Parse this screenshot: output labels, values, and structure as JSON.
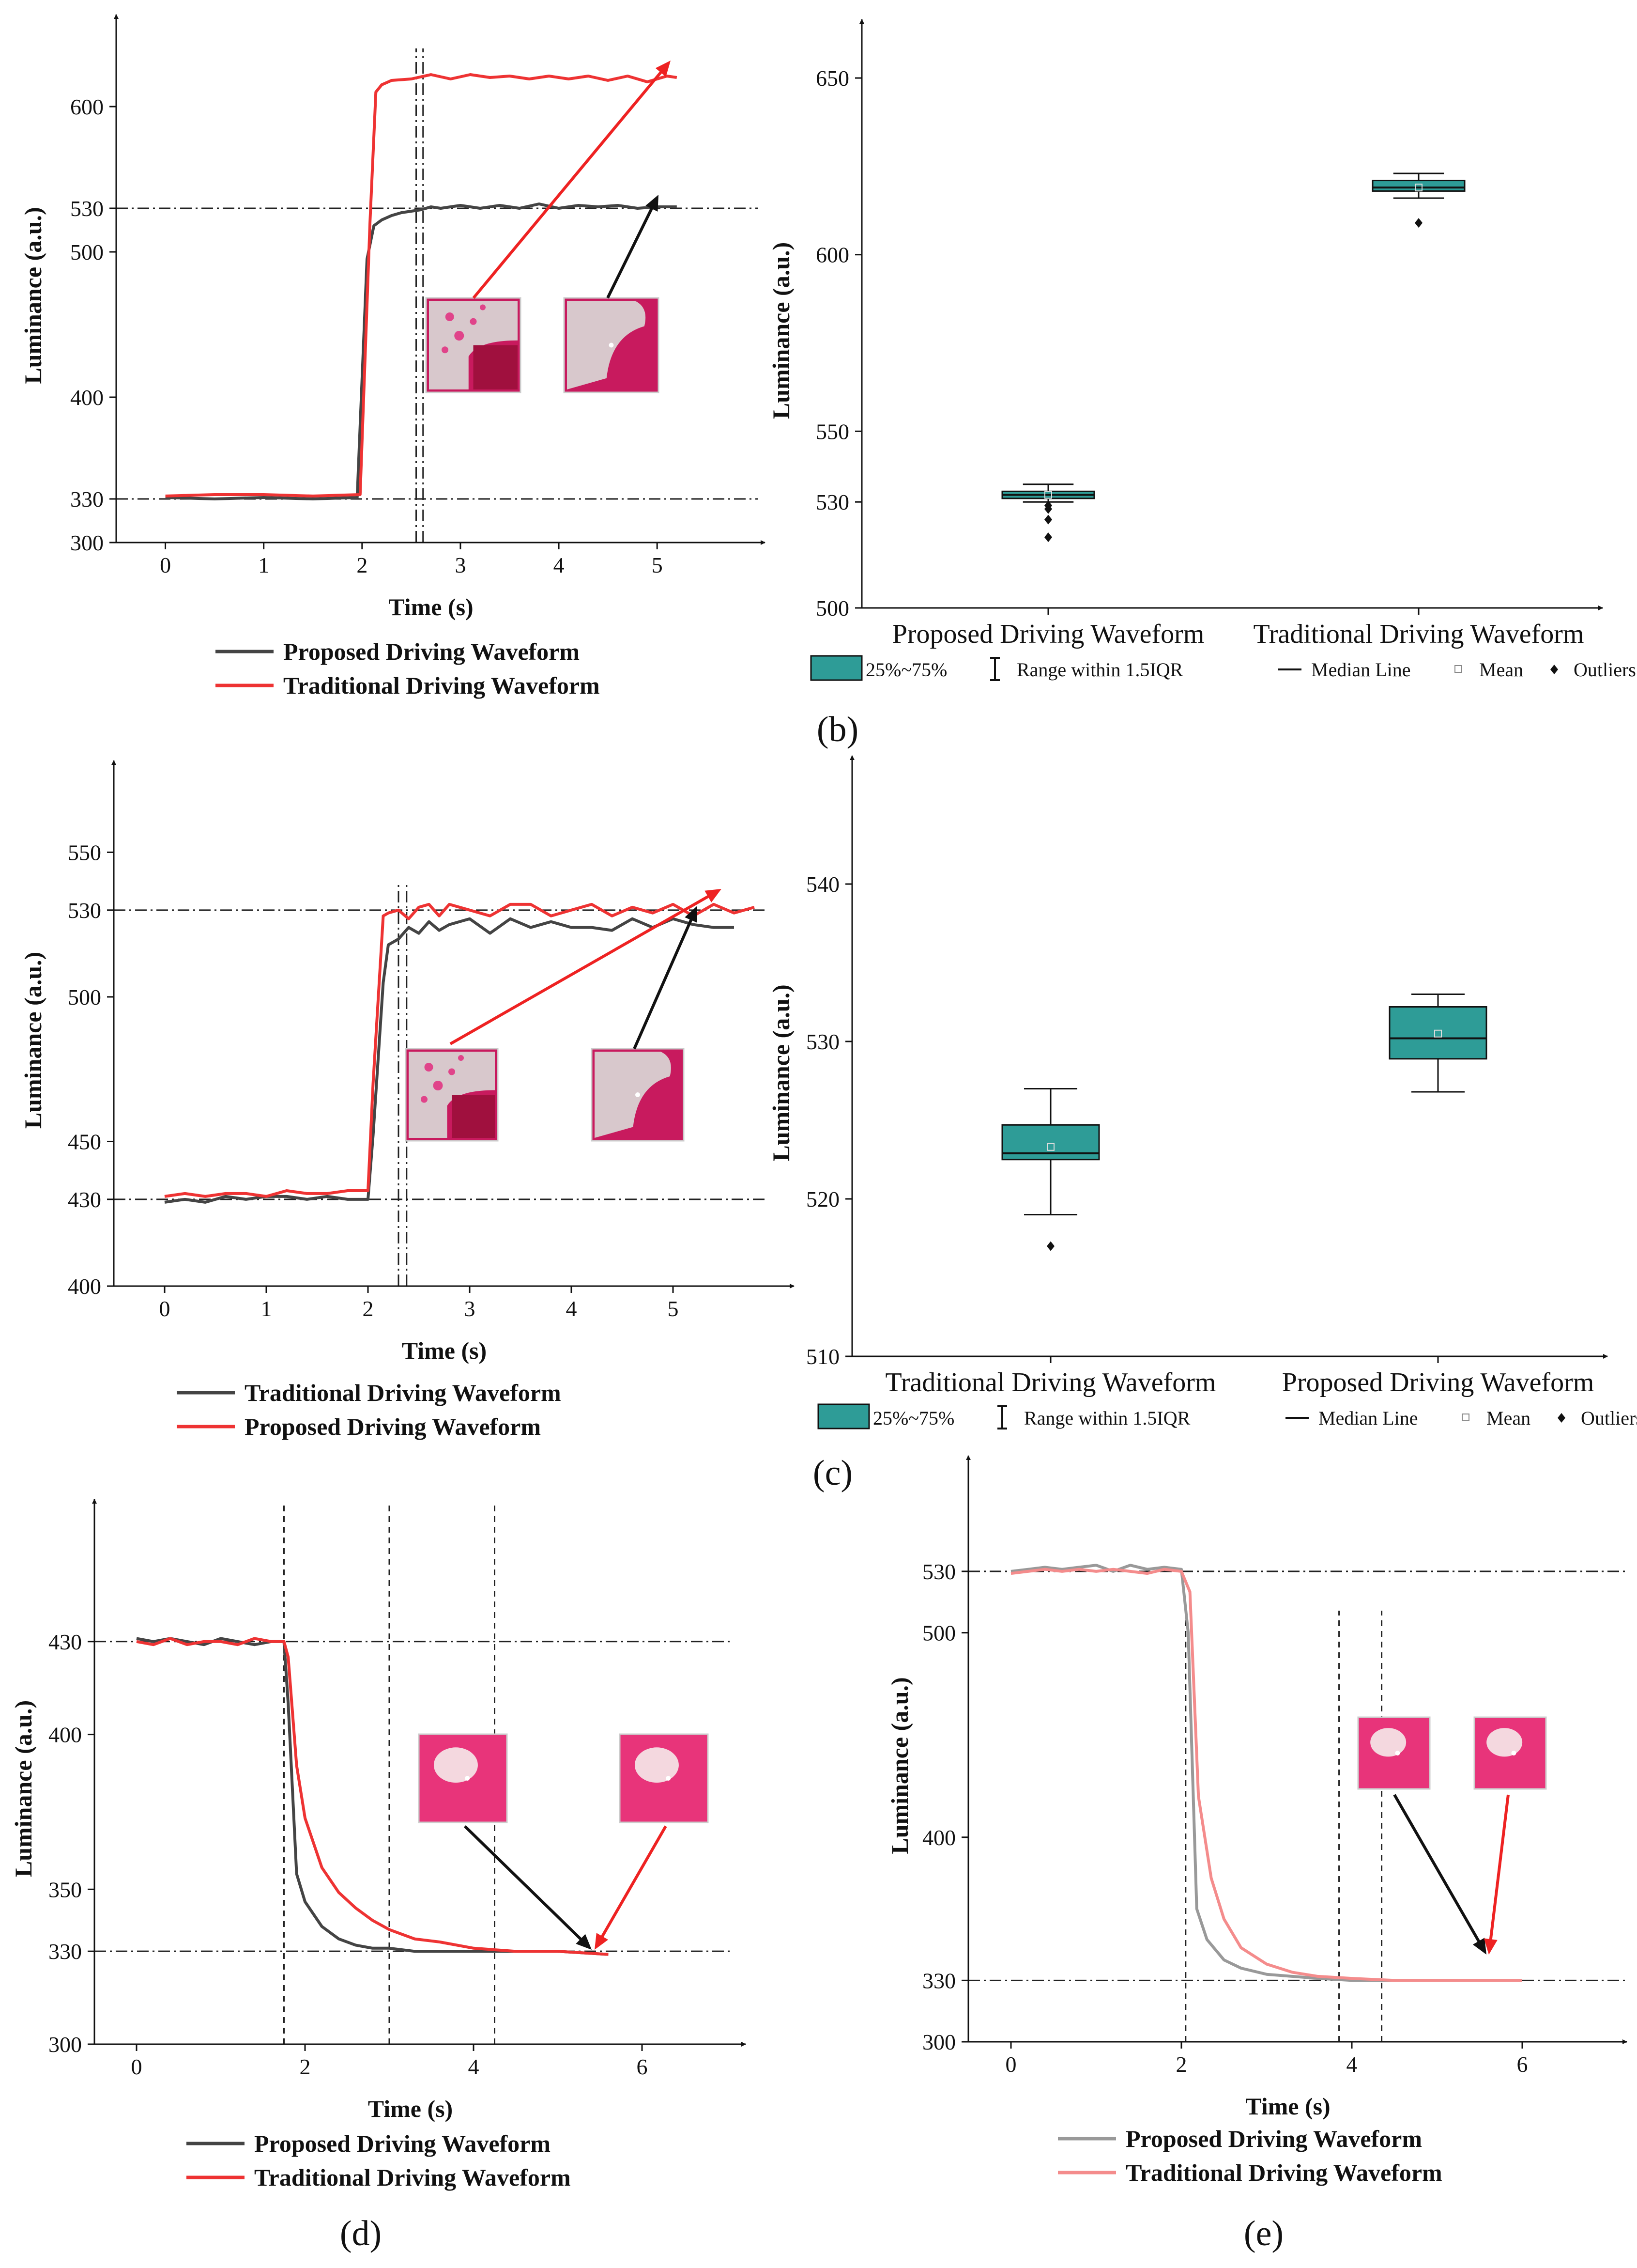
{
  "colors": {
    "proposed": "#444444",
    "traditional": "#ee3333",
    "box": "#2e9c97",
    "proposed_light": "#999999",
    "traditional_light": "#f48c8c"
  },
  "chart_data": [
    {
      "id": "a",
      "type": "line",
      "title": "",
      "panel_label": "",
      "xlabel": "Time (s)",
      "ylabel": "Luminance (a.u.)",
      "xlim": [
        -0.5,
        5.9
      ],
      "ylim": [
        300,
        640
      ],
      "xticks": [
        0,
        1,
        2,
        3,
        4,
        5
      ],
      "yticks": [
        300,
        330,
        400,
        500,
        530,
        600
      ],
      "hlines": [
        330,
        530
      ],
      "vlines": [
        2.55,
        2.62
      ],
      "series": [
        {
          "name": "Proposed Driving Waveform",
          "color": "#444444",
          "x": [
            0,
            0.5,
            1,
            1.5,
            1.95,
            2.05,
            2.12,
            2.2,
            2.3,
            2.4,
            2.5,
            2.6,
            2.7,
            2.8,
            3.0,
            3.2,
            3.4,
            3.6,
            3.8,
            4.0,
            4.2,
            4.4,
            4.6,
            4.8,
            5.0,
            5.2
          ],
          "y": [
            331,
            330,
            331,
            330,
            331,
            495,
            518,
            522,
            525,
            527,
            528,
            529,
            531,
            530,
            532,
            530,
            532,
            530,
            533,
            530,
            532,
            531,
            532,
            530,
            531,
            531
          ]
        },
        {
          "name": "Traditional Driving Waveform",
          "color": "#ee3333",
          "x": [
            0,
            0.5,
            1,
            1.5,
            1.98,
            2.08,
            2.14,
            2.2,
            2.3,
            2.5,
            2.7,
            2.9,
            3.1,
            3.3,
            3.5,
            3.7,
            3.9,
            4.1,
            4.3,
            4.5,
            4.7,
            4.9,
            5.1,
            5.2
          ],
          "y": [
            332,
            333,
            333,
            332,
            333,
            520,
            610,
            615,
            618,
            619,
            622,
            619,
            622,
            620,
            621,
            619,
            621,
            619,
            621,
            618,
            621,
            617,
            621,
            620
          ]
        }
      ]
    },
    {
      "id": "b",
      "type": "box",
      "title": "",
      "panel_label": "(b)",
      "xlabel": "",
      "ylabel": "Luminance (a.u.)",
      "ylim": [
        500,
        657
      ],
      "yticks": [
        500,
        530,
        550,
        600,
        650
      ],
      "categories": [
        "Proposed Driving Waveform",
        "Traditional Driving Waveform"
      ],
      "boxes": [
        {
          "q1": 531,
          "median": 532,
          "q3": 533,
          "whisker_low": 530,
          "whisker_high": 535,
          "mean": 532,
          "outliers": [
            528,
            529,
            525,
            520
          ]
        },
        {
          "q1": 618,
          "median": 619,
          "q3": 621,
          "whisker_low": 616,
          "whisker_high": 623,
          "mean": 619,
          "outliers": [
            609
          ]
        }
      ],
      "legend": [
        "25%~75%",
        "Range within 1.5IQR",
        "Median Line",
        "Mean",
        "Outliers"
      ]
    },
    {
      "id": "c-line",
      "type": "line",
      "title": "",
      "panel_label": "",
      "xlabel": "Time (s)",
      "ylabel": "Luminance (a.u.)",
      "xlim": [
        -0.5,
        6.0
      ],
      "ylim": [
        400,
        570
      ],
      "xticks": [
        0,
        1,
        2,
        3,
        4,
        5
      ],
      "yticks": [
        400,
        430,
        450,
        500,
        530,
        550
      ],
      "hlines": [
        430,
        530
      ],
      "vlines": [
        2.3,
        2.38
      ],
      "series": [
        {
          "name": "Traditional Driving Waveform",
          "color": "#444444",
          "x": [
            0,
            0.2,
            0.4,
            0.6,
            0.8,
            1.0,
            1.2,
            1.4,
            1.6,
            1.8,
            2.0,
            2.05,
            2.15,
            2.2,
            2.3,
            2.4,
            2.5,
            2.6,
            2.7,
            2.8,
            3.0,
            3.2,
            3.4,
            3.6,
            3.8,
            4.0,
            4.2,
            4.4,
            4.6,
            4.8,
            5.0,
            5.2,
            5.4,
            5.6
          ],
          "y": [
            429,
            430,
            429,
            431,
            430,
            431,
            431,
            430,
            431,
            430,
            430,
            452,
            505,
            518,
            520,
            524,
            522,
            526,
            523,
            525,
            527,
            522,
            527,
            524,
            526,
            524,
            524,
            523,
            527,
            524,
            527,
            525,
            524,
            524
          ]
        },
        {
          "name": "Proposed Driving Waveform",
          "color": "#ee3333",
          "x": [
            0,
            0.2,
            0.4,
            0.6,
            0.8,
            1.0,
            1.2,
            1.4,
            1.6,
            1.8,
            2.0,
            2.05,
            2.15,
            2.2,
            2.3,
            2.4,
            2.5,
            2.6,
            2.7,
            2.8,
            3.0,
            3.2,
            3.4,
            3.6,
            3.8,
            4.0,
            4.2,
            4.4,
            4.6,
            4.8,
            5.0,
            5.2,
            5.4,
            5.6,
            5.8
          ],
          "y": [
            431,
            432,
            431,
            432,
            432,
            431,
            433,
            432,
            432,
            433,
            433,
            470,
            528,
            529,
            530,
            527,
            531,
            532,
            528,
            532,
            530,
            528,
            532,
            532,
            528,
            530,
            532,
            528,
            531,
            529,
            532,
            528,
            532,
            529,
            531
          ]
        }
      ]
    },
    {
      "id": "c",
      "type": "box",
      "title": "",
      "panel_label": "(c)",
      "xlabel": "",
      "ylabel": "Luminance (a.u.)",
      "ylim": [
        510,
        546
      ],
      "yticks": [
        510,
        520,
        530,
        540
      ],
      "categories": [
        "Traditional Driving Waveform",
        "Proposed Driving Waveform"
      ],
      "boxes": [
        {
          "q1": 522.5,
          "median": 522.9,
          "q3": 524.7,
          "whisker_low": 519,
          "whisker_high": 527,
          "mean": 523.3,
          "outliers": [
            517
          ]
        },
        {
          "q1": 528.9,
          "median": 530.2,
          "q3": 532.2,
          "whisker_low": 526.8,
          "whisker_high": 533.0,
          "mean": 530.5,
          "outliers": []
        }
      ],
      "legend": [
        "25%~75%",
        "Range within 1.5IQR",
        "Median Line",
        "Mean",
        "Outliers"
      ]
    },
    {
      "id": "d",
      "type": "line",
      "title": "",
      "panel_label": "(d)",
      "xlabel": "Time (s)",
      "ylabel": "Luminance (a.u.)",
      "xlim": [
        -0.5,
        7.0
      ],
      "ylim": [
        300,
        465
      ],
      "xticks": [
        0,
        2,
        4,
        6
      ],
      "yticks": [
        300,
        330,
        350,
        400,
        430
      ],
      "hlines": [
        330,
        430
      ],
      "vlines": [
        1.75,
        3.0,
        4.25
      ],
      "series": [
        {
          "name": "Proposed Driving Waveform",
          "color": "#444444",
          "x": [
            0,
            0.2,
            0.4,
            0.6,
            0.8,
            1.0,
            1.2,
            1.4,
            1.6,
            1.75,
            1.8,
            1.9,
            2.0,
            2.2,
            2.4,
            2.6,
            2.8,
            3.0,
            3.3,
            3.6,
            4.0,
            4.5,
            5.0,
            5.6
          ],
          "y": [
            431,
            430,
            431,
            430,
            429,
            431,
            430,
            429,
            430,
            430,
            410,
            355,
            346,
            338,
            334,
            332,
            331,
            331,
            330,
            330,
            330,
            330,
            330,
            329
          ]
        },
        {
          "name": "Traditional  Driving  Waveform",
          "color": "#ee3333",
          "x": [
            0,
            0.2,
            0.4,
            0.6,
            0.8,
            1.0,
            1.2,
            1.4,
            1.6,
            1.75,
            1.8,
            1.9,
            2.0,
            2.2,
            2.4,
            2.6,
            2.8,
            3.0,
            3.3,
            3.6,
            4.0,
            4.5,
            5.0,
            5.6
          ],
          "y": [
            430,
            429,
            431,
            429,
            430,
            430,
            429,
            431,
            430,
            430,
            425,
            390,
            373,
            357,
            349,
            344,
            340,
            337,
            334,
            333,
            331,
            330,
            330,
            329
          ]
        }
      ]
    },
    {
      "id": "e",
      "type": "line",
      "title": "",
      "panel_label": "(e)",
      "xlabel": "Time (s)",
      "ylabel": "Luminance (a.u.)",
      "xlim": [
        -0.5,
        7.0
      ],
      "ylim": [
        300,
        570
      ],
      "xticks": [
        0,
        2,
        4,
        6
      ],
      "yticks": [
        300,
        330,
        400,
        500,
        530
      ],
      "hlines": [
        330,
        530
      ],
      "vlines": [
        2.05,
        3.85,
        4.35
      ],
      "series": [
        {
          "name": "Proposed Driving Waveform",
          "color": "#999999",
          "x": [
            0,
            0.2,
            0.4,
            0.6,
            0.8,
            1.0,
            1.2,
            1.4,
            1.6,
            1.8,
            2.0,
            2.08,
            2.18,
            2.3,
            2.5,
            2.7,
            3.0,
            3.3,
            3.6,
            4.0,
            4.5,
            5.0,
            5.5,
            6.0
          ],
          "y": [
            530,
            531,
            532,
            531,
            532,
            533,
            530,
            533,
            531,
            532,
            531,
            500,
            365,
            350,
            340,
            336,
            333,
            332,
            331,
            330,
            330,
            330,
            330,
            330
          ]
        },
        {
          "name": "Traditional Driving Waveform",
          "color": "#f48c8c",
          "x": [
            0,
            0.2,
            0.4,
            0.6,
            0.8,
            1.0,
            1.2,
            1.4,
            1.6,
            1.8,
            2.0,
            2.1,
            2.2,
            2.35,
            2.5,
            2.7,
            3.0,
            3.3,
            3.6,
            4.0,
            4.5,
            5.0,
            5.5,
            6.0
          ],
          "y": [
            529,
            530,
            531,
            530,
            531,
            530,
            531,
            530,
            529,
            531,
            530,
            520,
            420,
            380,
            360,
            346,
            338,
            334,
            332,
            331,
            330,
            330,
            330,
            330
          ]
        }
      ]
    }
  ]
}
